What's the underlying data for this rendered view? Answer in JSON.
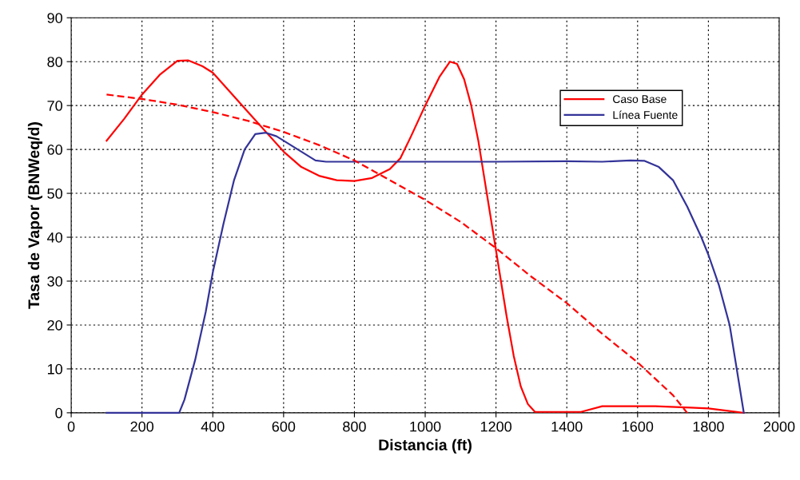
{
  "chart_data": {
    "type": "line",
    "xlabel": "Distancia (ft)",
    "ylabel": "Tasa de Vapor (BNWeq/d)",
    "xlim": [
      0,
      2000
    ],
    "xticks": [
      0,
      200,
      400,
      600,
      800,
      1000,
      1200,
      1400,
      1600,
      1800,
      2000
    ],
    "ylim": [
      0,
      90
    ],
    "yticks": [
      0,
      10,
      20,
      30,
      40,
      50,
      60,
      70,
      80,
      90
    ],
    "grid": true,
    "legend": "top right",
    "marker": "none",
    "series": [
      {
        "name": "Caso Base",
        "color": "#ff0000",
        "line_style": "solid",
        "x": [
          100,
          150,
          200,
          250,
          300,
          330,
          370,
          400,
          450,
          500,
          550,
          600,
          650,
          700,
          750,
          800,
          850,
          900,
          930,
          960,
          1000,
          1040,
          1070,
          1090,
          1110,
          1130,
          1150,
          1170,
          1190,
          1210,
          1230,
          1250,
          1270,
          1290,
          1310,
          1440,
          1500,
          1650,
          1750,
          1800,
          1850,
          1900
        ],
        "values": [
          62,
          67,
          72.5,
          77,
          80.2,
          80.3,
          79,
          77.5,
          73,
          68.5,
          64,
          59.5,
          56,
          54,
          53,
          52.8,
          53.5,
          55.5,
          58,
          63,
          70,
          76.5,
          80,
          79.5,
          76,
          70,
          62,
          52,
          42,
          32,
          22,
          13,
          6,
          2,
          0.2,
          0.2,
          1.5,
          1.5,
          1.2,
          1,
          0.5,
          0
        ]
      },
      {
        "name": "Línea Fuente",
        "color": "#333399",
        "line_style": "solid",
        "x": [
          100,
          200,
          305,
          320,
          350,
          380,
          400,
          430,
          460,
          490,
          520,
          550,
          580,
          620,
          660,
          690,
          720,
          800,
          1000,
          1200,
          1400,
          1500,
          1580,
          1620,
          1660,
          1700,
          1740,
          1780,
          1800,
          1830,
          1860,
          1900
        ],
        "values": [
          0,
          0,
          0,
          3,
          12,
          23,
          32,
          43,
          53,
          60,
          63.5,
          63.8,
          63,
          61,
          59,
          57.5,
          57.2,
          57.2,
          57.2,
          57.2,
          57.3,
          57.2,
          57.5,
          57.4,
          56,
          53,
          47,
          40,
          36,
          29,
          20,
          0
        ]
      },
      {
        "color": "#ff0000",
        "line_style": "dashed",
        "x": [
          100,
          200,
          300,
          400,
          500,
          600,
          700,
          800,
          900,
          1000,
          1100,
          1200,
          1300,
          1400,
          1500,
          1600,
          1700,
          1740
        ],
        "values": [
          72.5,
          71.5,
          70.2,
          68.5,
          66.5,
          64,
          61,
          57.5,
          53,
          48.5,
          43.5,
          37.5,
          31,
          25,
          18,
          11.5,
          4,
          0
        ]
      }
    ]
  }
}
